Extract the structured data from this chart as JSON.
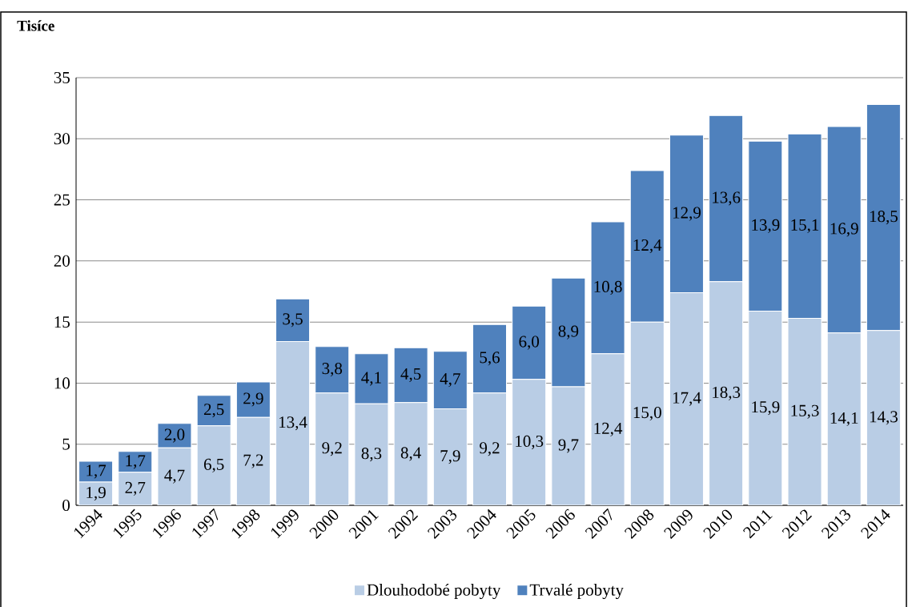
{
  "chart_data": {
    "type": "bar",
    "stacked": true,
    "ylabel": "Tisíce",
    "categories": [
      "1994",
      "1995",
      "1996",
      "1997",
      "1998",
      "1999",
      "2000",
      "2001",
      "2002",
      "2003",
      "2004",
      "2005",
      "2006",
      "2007",
      "2008",
      "2009",
      "2010",
      "2011",
      "2012",
      "2013",
      "2014"
    ],
    "series": [
      {
        "name": "Dlouhodobé pobyty",
        "color": "#b9cde5",
        "values": [
          1.9,
          2.7,
          4.7,
          6.5,
          7.2,
          13.4,
          9.2,
          8.3,
          8.4,
          7.9,
          9.2,
          10.3,
          9.7,
          12.4,
          15.0,
          17.4,
          18.3,
          15.9,
          15.3,
          14.1,
          14.3
        ],
        "value_labels": [
          "1,9",
          "2,7",
          "4,7",
          "6,5",
          "7,2",
          "13,4",
          "9,2",
          "8,3",
          "8,4",
          "7,9",
          "9,2",
          "10,3",
          "9,7",
          "12,4",
          "15,0",
          "17,4",
          "18,3",
          "15,9",
          "15,3",
          "14,1",
          "14,3"
        ]
      },
      {
        "name": "Trvalé pobyty",
        "color": "#4f81bd",
        "values": [
          1.7,
          1.7,
          2.0,
          2.5,
          2.9,
          3.5,
          3.8,
          4.1,
          4.5,
          4.7,
          5.6,
          6.0,
          8.9,
          10.8,
          12.4,
          12.9,
          13.6,
          13.9,
          15.1,
          16.9,
          18.5
        ],
        "value_labels": [
          "1,7",
          "1,7",
          "2,0",
          "2,5",
          "2,9",
          "3,5",
          "3,8",
          "4,1",
          "4,5",
          "4,7",
          "5,6",
          "6,0",
          "8,9",
          "10,8",
          "12,4",
          "12,9",
          "13,6",
          "13,9",
          "15,1",
          "16,9",
          "18,5"
        ]
      }
    ],
    "ylim": [
      0,
      35
    ],
    "yticks": [
      0,
      5,
      10,
      15,
      20,
      25,
      30,
      35
    ],
    "grid": "y",
    "legend": "bottom"
  }
}
